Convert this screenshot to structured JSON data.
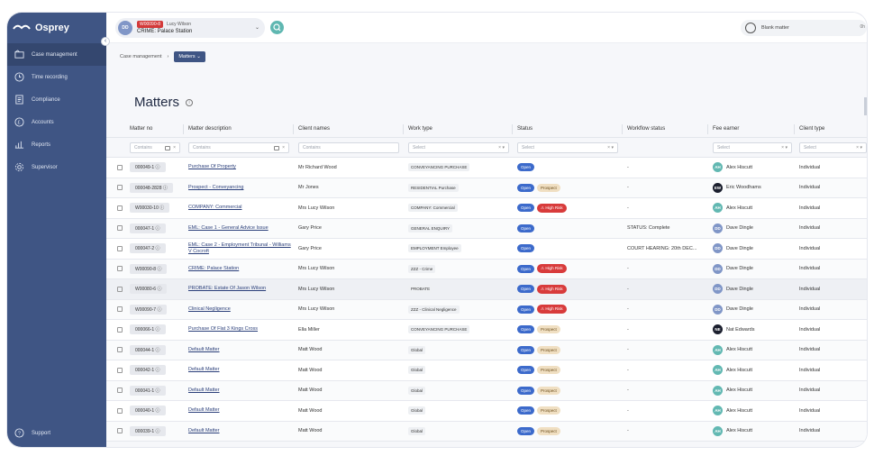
{
  "app": {
    "name": "Osprey"
  },
  "sidebar": {
    "items": [
      {
        "label": "Case management",
        "icon": "folder-icon",
        "active": true
      },
      {
        "label": "Time recording",
        "icon": "clock-icon",
        "active": false
      },
      {
        "label": "Compliance",
        "icon": "checklist-icon",
        "active": false
      },
      {
        "label": "Accounts",
        "icon": "pound-icon",
        "active": false
      },
      {
        "label": "Reports",
        "icon": "bar-chart-icon",
        "active": false
      },
      {
        "label": "Supervisor",
        "icon": "gear-icon",
        "active": false
      }
    ],
    "support": "Support"
  },
  "topbar": {
    "matter": {
      "avatar": "DD",
      "ref": "W00090-8",
      "client": "Lucy Wilson",
      "title": "CRIME: Palace Station"
    },
    "timer": {
      "label": "Blank matter",
      "time": "0h"
    }
  },
  "breadcrumb": {
    "root": "Case management",
    "current": "Matters"
  },
  "page": {
    "title": "Matters"
  },
  "table": {
    "columns": [
      "Matter no",
      "Matter description",
      "Client names",
      "Work type",
      "Status",
      "Workflow status",
      "Fee earner",
      "Client type"
    ],
    "filters": {
      "matter_no": "Contains",
      "description": "Contains",
      "client": "Contains",
      "work_type": "Select",
      "status": "Select",
      "fee_earner": "Select",
      "client_type": "Select"
    },
    "rows": [
      {
        "no": "000049-1",
        "desc": "Purchase Of Property",
        "client": "Mr Richard Wood",
        "work": "CONVEYANCING PURCHASE",
        "status": [
          "Open"
        ],
        "workflow": "-",
        "fe_init": "AH",
        "fe_name": "Alex Hiscutt",
        "fe_color": "#62b8b2",
        "type": "Individual"
      },
      {
        "no": "000048-2828",
        "desc": "Prospect - Conveyancing",
        "client": "Mr Jones",
        "work": "RESIDENTIAL Purchase",
        "status": [
          "Open",
          "Prospect"
        ],
        "workflow": "-",
        "fe_init": "EW",
        "fe_name": "Eric Woodhams",
        "fe_color": "#1b1f2e",
        "type": "Individual"
      },
      {
        "no": "W00030-10",
        "desc": "COMPANY: Commercial",
        "client": "Mrs Lucy Wilson",
        "work": "COMPANY: Commercial",
        "status": [
          "Open",
          "High Risk"
        ],
        "workflow": "-",
        "fe_init": "AH",
        "fe_name": "Alex Hiscutt",
        "fe_color": "#62b8b2",
        "type": "Individual"
      },
      {
        "no": "000047-1",
        "desc": "EML: Case 1 - General Advice Issue",
        "client": "Gary Price",
        "work": "GENERAL ENQUIRY",
        "status": [
          "Open"
        ],
        "workflow": "STATUS: Complete",
        "fe_init": "DD",
        "fe_name": "Dave Dingle",
        "fe_color": "#8096c7",
        "type": "Individual"
      },
      {
        "no": "000047-2",
        "desc": "EML: Case 2 - Employment Tribunal - Williams V Cocroft",
        "client": "Gary Price",
        "work": "EMPLOYMENT Employee",
        "status": [
          "Open"
        ],
        "workflow": "COURT HEARING: 20th DEC...",
        "fe_init": "DD",
        "fe_name": "Dave Dingle",
        "fe_color": "#8096c7",
        "type": "Individual"
      },
      {
        "no": "W00090-8",
        "desc": "CRIME: Palace Station",
        "client": "Mrs Lucy Wilson",
        "work": "ZZZ - Crime",
        "status": [
          "Open",
          "High Risk"
        ],
        "workflow": "-",
        "fe_init": "DD",
        "fe_name": "Dave Dingle",
        "fe_color": "#8096c7",
        "type": "Individual"
      },
      {
        "no": "W00080-6",
        "desc": "PROBATE: Estate Of Jason Wilson",
        "client": "Mrs Lucy Wilson",
        "work": "PROBATE",
        "status": [
          "Open",
          "High Risk"
        ],
        "workflow": "-",
        "fe_init": "DD",
        "fe_name": "Dave Dingle",
        "fe_color": "#8096c7",
        "type": "Individual"
      },
      {
        "no": "W00090-7",
        "desc": "Clinical Negligence",
        "client": "Mrs Lucy Wilson",
        "work": "ZZZ - Clinical Negligence",
        "status": [
          "Open",
          "High Risk"
        ],
        "workflow": "-",
        "fe_init": "DD",
        "fe_name": "Dave Dingle",
        "fe_color": "#8096c7",
        "type": "Individual"
      },
      {
        "no": "000066-1",
        "desc": "Purchase Of Flat 3 Kings Cross",
        "client": "Ella Miller",
        "work": "CONVEYANCING PURCHASE",
        "status": [
          "Open",
          "Prospect"
        ],
        "workflow": "-",
        "fe_init": "NE",
        "fe_name": "Nat Edwards",
        "fe_color": "#1b1f2e",
        "type": "Individual"
      },
      {
        "no": "000044-1",
        "desc": "Default Matter",
        "client": "Matt Wood",
        "work": "Global",
        "status": [
          "Open",
          "Prospect"
        ],
        "workflow": "-",
        "fe_init": "AH",
        "fe_name": "Alex Hiscutt",
        "fe_color": "#62b8b2",
        "type": "Individual"
      },
      {
        "no": "000042-1",
        "desc": "Default Matter",
        "client": "Matt Wood",
        "work": "Global",
        "status": [
          "Open",
          "Prospect"
        ],
        "workflow": "-",
        "fe_init": "AH",
        "fe_name": "Alex Hiscutt",
        "fe_color": "#62b8b2",
        "type": "Individual"
      },
      {
        "no": "000041-1",
        "desc": "Default Matter",
        "client": "Matt Wood",
        "work": "Global",
        "status": [
          "Open",
          "Prospect"
        ],
        "workflow": "-",
        "fe_init": "AH",
        "fe_name": "Alex Hiscutt",
        "fe_color": "#62b8b2",
        "type": "Individual"
      },
      {
        "no": "000040-1",
        "desc": "Default Matter",
        "client": "Matt Wood",
        "work": "Global",
        "status": [
          "Open",
          "Prospect"
        ],
        "workflow": "-",
        "fe_init": "AH",
        "fe_name": "Alex Hiscutt",
        "fe_color": "#62b8b2",
        "type": "Individual"
      },
      {
        "no": "000039-1",
        "desc": "Default Matter",
        "client": "Matt Wood",
        "work": "Global",
        "status": [
          "Open",
          "Prospect"
        ],
        "workflow": "-",
        "fe_init": "AH",
        "fe_name": "Alex Hiscutt",
        "fe_color": "#62b8b2",
        "type": "Individual"
      }
    ]
  },
  "colors": {
    "sidebar": "#3f5584",
    "accent": "#3c6acb",
    "risk": "#d83b3b",
    "prospect": "#f0dfc2",
    "teal": "#62b8b2"
  }
}
